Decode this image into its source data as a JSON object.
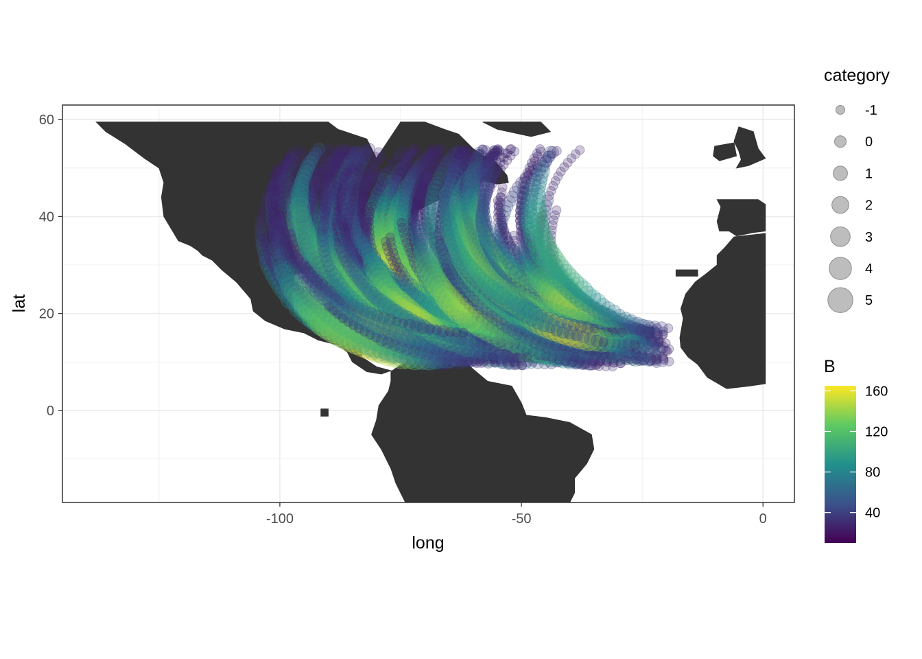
{
  "chart_data": {
    "type": "scatter",
    "title": "",
    "xlabel": "long",
    "ylabel": "lat",
    "xlim": [
      -145,
      6.5
    ],
    "ylim": [
      -19,
      63
    ],
    "x_ticks": [
      -100,
      -50,
      0
    ],
    "x_tick_labels": [
      "-100",
      "-50",
      "0"
    ],
    "y_ticks": [
      0,
      20,
      40,
      60
    ],
    "y_tick_labels": [
      "0",
      "20",
      "40",
      "60"
    ],
    "grid": true,
    "theme": "bw",
    "land_color": "#333333",
    "point_alpha": 0.25,
    "legend_placement": "right",
    "size_legend": {
      "title": "category",
      "levels": [
        -1,
        0,
        1,
        2,
        3,
        4,
        5
      ],
      "labels": [
        "-1",
        "0",
        "1",
        "2",
        "3",
        "4",
        "5"
      ],
      "key_color": "#bdbdbd"
    },
    "color_legend": {
      "title": "B",
      "palette": "viridis",
      "range": [
        10,
        165
      ],
      "ticks": [
        40,
        80,
        120,
        160
      ],
      "tick_labels": [
        "40",
        "80",
        "120",
        "160"
      ],
      "stops": [
        "#440154",
        "#3b528b",
        "#21908c",
        "#5ec962",
        "#fde725"
      ]
    },
    "land": [
      {
        "name": "north-america",
        "polygon": [
          [
            -138,
            59.5
          ],
          [
            -128,
            59.5
          ],
          [
            -119,
            59.5
          ],
          [
            -108,
            59.5
          ],
          [
            -95,
            59.5
          ],
          [
            -90,
            59.5
          ],
          [
            -88,
            58
          ],
          [
            -82,
            56
          ],
          [
            -80,
            52
          ],
          [
            -78,
            55
          ],
          [
            -75,
            59.5
          ],
          [
            -70,
            59.5
          ],
          [
            -66,
            58
          ],
          [
            -63,
            57
          ],
          [
            -60,
            54
          ],
          [
            -57,
            52
          ],
          [
            -59,
            48
          ],
          [
            -63,
            46
          ],
          [
            -66,
            44
          ],
          [
            -70,
            42
          ],
          [
            -73,
            40.5
          ],
          [
            -75,
            38.5
          ],
          [
            -76,
            36
          ],
          [
            -77,
            34
          ],
          [
            -80,
            32
          ],
          [
            -81,
            30
          ],
          [
            -80,
            27
          ],
          [
            -80.5,
            25
          ],
          [
            -82,
            26
          ],
          [
            -83,
            29
          ],
          [
            -85,
            30
          ],
          [
            -89,
            30
          ],
          [
            -93,
            29.5
          ],
          [
            -97,
            28
          ],
          [
            -97.5,
            24
          ],
          [
            -97,
            21
          ],
          [
            -95,
            19
          ],
          [
            -91,
            18.5
          ],
          [
            -90,
            21
          ],
          [
            -87,
            21
          ],
          [
            -88,
            16.5
          ],
          [
            -86,
            15.5
          ],
          [
            -83.5,
            15
          ],
          [
            -83,
            11
          ],
          [
            -80,
            9
          ],
          [
            -77,
            8.2
          ],
          [
            -79,
            7.5
          ],
          [
            -82,
            8
          ],
          [
            -85,
            10
          ],
          [
            -86,
            12
          ],
          [
            -88,
            13.5
          ],
          [
            -92,
            14.5
          ],
          [
            -95,
            16
          ],
          [
            -99,
            16.8
          ],
          [
            -103,
            18.5
          ],
          [
            -105.5,
            20.5
          ],
          [
            -106,
            23
          ],
          [
            -109,
            26.5
          ],
          [
            -112,
            29
          ],
          [
            -114,
            31
          ],
          [
            -116,
            32
          ],
          [
            -117,
            33
          ],
          [
            -118.5,
            34
          ],
          [
            -121,
            35
          ],
          [
            -122.5,
            37.5
          ],
          [
            -124,
            40
          ],
          [
            -124.5,
            44
          ],
          [
            -124,
            47
          ],
          [
            -125,
            50
          ],
          [
            -128,
            52
          ],
          [
            -132,
            55
          ],
          [
            -136,
            57.5
          ]
        ]
      },
      {
        "name": "greenland-south",
        "polygon": [
          [
            -58,
            59.5
          ],
          [
            -46,
            59.5
          ],
          [
            -44,
            57.5
          ],
          [
            -48,
            56.5
          ],
          [
            -55,
            58
          ]
        ]
      },
      {
        "name": "south-america",
        "polygon": [
          [
            -77,
            8
          ],
          [
            -72,
            11.5
          ],
          [
            -68,
            11
          ],
          [
            -62,
            10.5
          ],
          [
            -60,
            8.5
          ],
          [
            -57,
            6
          ],
          [
            -52,
            5
          ],
          [
            -50,
            1.5
          ],
          [
            -49,
            -1
          ],
          [
            -45,
            -1.5
          ],
          [
            -40,
            -2.5
          ],
          [
            -35.5,
            -5
          ],
          [
            -35,
            -8
          ],
          [
            -36.5,
            -11
          ],
          [
            -39,
            -14
          ],
          [
            -39,
            -17
          ],
          [
            -40,
            -19
          ],
          [
            -74,
            -19
          ],
          [
            -76,
            -15
          ],
          [
            -77,
            -12
          ],
          [
            -79,
            -8
          ],
          [
            -81,
            -5
          ],
          [
            -80,
            -2
          ],
          [
            -79.5,
            1
          ],
          [
            -78.5,
            2.5
          ],
          [
            -77.5,
            4
          ],
          [
            -77,
            6
          ]
        ]
      },
      {
        "name": "iberia",
        "polygon": [
          [
            -9.5,
            43.5
          ],
          [
            -1,
            43.5
          ],
          [
            0.5,
            42.5
          ],
          [
            0.5,
            37
          ],
          [
            -2,
            36.7
          ],
          [
            -5.5,
            36
          ],
          [
            -7,
            37
          ],
          [
            -9,
            37
          ],
          [
            -9.5,
            39
          ],
          [
            -8.7,
            42
          ]
        ]
      },
      {
        "name": "africa",
        "polygon": [
          [
            -6,
            35.8
          ],
          [
            0.5,
            36.5
          ],
          [
            0.5,
            5.5
          ],
          [
            -3,
            5
          ],
          [
            -7.5,
            4.5
          ],
          [
            -11.5,
            6.8
          ],
          [
            -13.5,
            9.5
          ],
          [
            -15.5,
            11
          ],
          [
            -17,
            13
          ],
          [
            -17.2,
            15
          ],
          [
            -16.5,
            19
          ],
          [
            -17,
            21
          ],
          [
            -16,
            24
          ],
          [
            -14,
            26.5
          ],
          [
            -12,
            28
          ],
          [
            -9.5,
            30
          ],
          [
            -9.5,
            32
          ],
          [
            -8,
            33.5
          ]
        ]
      },
      {
        "name": "british-isles",
        "polygon": [
          [
            -5,
            58.5
          ],
          [
            -2,
            57.5
          ],
          [
            -1,
            54
          ],
          [
            0.5,
            52
          ],
          [
            -3,
            50.5
          ],
          [
            -5.5,
            50
          ],
          [
            -4.5,
            51.7
          ],
          [
            -5,
            53.5
          ],
          [
            -6,
            55.5
          ]
        ]
      },
      {
        "name": "ireland",
        "polygon": [
          [
            -10,
            54.5
          ],
          [
            -6,
            55.2
          ],
          [
            -5.5,
            52.5
          ],
          [
            -9,
            51.5
          ],
          [
            -10.3,
            52.5
          ]
        ]
      },
      {
        "name": "cuba",
        "polygon": [
          [
            -85,
            22
          ],
          [
            -80,
            23.2
          ],
          [
            -77,
            22
          ],
          [
            -74,
            20.2
          ],
          [
            -77,
            19.8
          ],
          [
            -80,
            21.2
          ],
          [
            -83,
            21.8
          ]
        ]
      },
      {
        "name": "hispaniola",
        "polygon": [
          [
            -74.5,
            19.8
          ],
          [
            -71,
            19.9
          ],
          [
            -68.3,
            18.5
          ],
          [
            -71,
            17.7
          ],
          [
            -74.4,
            18.2
          ]
        ]
      },
      {
        "name": "jamaica",
        "polygon": [
          [
            -78.4,
            18.4
          ],
          [
            -76.2,
            18.4
          ],
          [
            -76.2,
            17.8
          ],
          [
            -78.4,
            18
          ]
        ]
      },
      {
        "name": "puerto-rico",
        "polygon": [
          [
            -67.3,
            18.5
          ],
          [
            -65.6,
            18.5
          ],
          [
            -65.6,
            17.9
          ],
          [
            -67.3,
            17.9
          ]
        ]
      },
      {
        "name": "newfoundland",
        "polygon": [
          [
            -59.5,
            47.7
          ],
          [
            -55.5,
            51.5
          ],
          [
            -53,
            48.5
          ],
          [
            -52.7,
            47
          ],
          [
            -55,
            46.7
          ],
          [
            -59,
            47.5
          ]
        ]
      },
      {
        "name": "nova-scotia",
        "polygon": [
          [
            -66,
            45
          ],
          [
            -61,
            46.5
          ],
          [
            -60,
            46
          ],
          [
            -63.5,
            44.5
          ],
          [
            -65.7,
            43.5
          ]
        ]
      },
      {
        "name": "yucatan",
        "polygon": [
          [
            -91,
            21
          ],
          [
            -87,
            21.6
          ],
          [
            -86.8,
            18
          ],
          [
            -88.3,
            16
          ],
          [
            -90.5,
            17.8
          ],
          [
            -91,
            19.5
          ]
        ]
      },
      {
        "name": "bahamas-andros",
        "polygon": [
          [
            -78.2,
            25.2
          ],
          [
            -77.6,
            25.2
          ],
          [
            -77.6,
            24.0
          ],
          [
            -78.2,
            24.0
          ]
        ]
      },
      {
        "name": "cape-verde",
        "polygon": [
          [
            -25.2,
            17.2
          ],
          [
            -22.6,
            17.2
          ],
          [
            -22.6,
            14.8
          ],
          [
            -25.2,
            14.8
          ]
        ]
      },
      {
        "name": "canary-islands",
        "polygon": [
          [
            -18,
            29
          ],
          [
            -13.5,
            29
          ],
          [
            -13.5,
            27.7
          ],
          [
            -18,
            27.7
          ]
        ]
      },
      {
        "name": "galapagos",
        "polygon": [
          [
            -91.5,
            0.3
          ],
          [
            -90,
            0.3
          ],
          [
            -90,
            -1.2
          ],
          [
            -91.5,
            -1.2
          ]
        ]
      }
    ]
  }
}
